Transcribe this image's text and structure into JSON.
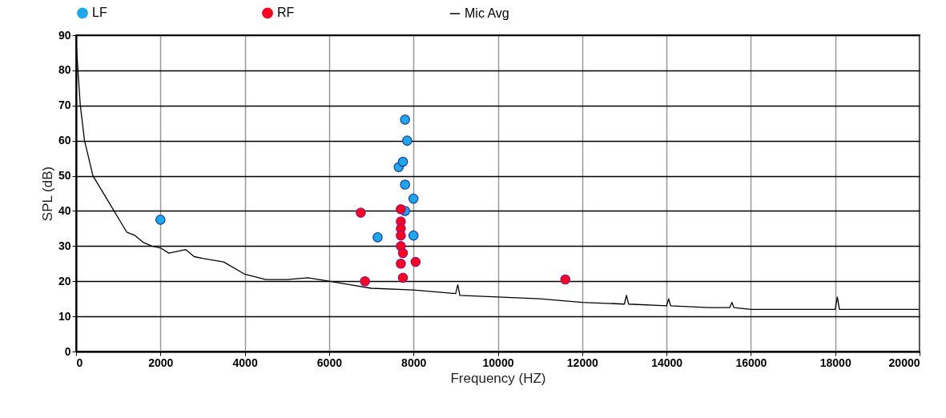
{
  "chart_data": {
    "type": "scatter",
    "xlabel": "Frequency (HZ)",
    "ylabel": "SPL (dB)",
    "xlim": [
      0,
      20000
    ],
    "xticks": [
      0,
      2000,
      4000,
      6000,
      8000,
      10000,
      12000,
      14000,
      16000,
      18000,
      20000
    ],
    "ylim": [
      0,
      90
    ],
    "yticks": [
      0,
      10,
      20,
      30,
      40,
      50,
      60,
      70,
      80,
      90
    ],
    "grid": true,
    "legend": "top",
    "marker": "circle",
    "series": [
      {
        "name": "LF",
        "color": "#1ea7ea",
        "x": [
          2000,
          7150,
          7650,
          7750,
          7800,
          7850,
          7800,
          8000,
          8000,
          7800
        ],
        "values": [
          37.5,
          32.5,
          52.5,
          54,
          66,
          60,
          47.5,
          43.5,
          33,
          40
        ]
      },
      {
        "name": "RF",
        "color": "#ff0022",
        "x": [
          6750,
          6850,
          7700,
          7700,
          7700,
          7700,
          7700,
          7700,
          7750,
          8050,
          11600,
          7750
        ],
        "values": [
          39.5,
          20,
          40.5,
          37,
          35,
          33,
          30,
          25,
          21,
          25.5,
          20.5,
          28
        ]
      },
      {
        "name": "Mic Avg",
        "type": "line",
        "color": "#000000",
        "marker": "none",
        "x": [
          0,
          100,
          200,
          300,
          400,
          600,
          800,
          1000,
          1200,
          1400,
          1600,
          1800,
          2000,
          2200,
          2400,
          2600,
          2800,
          3000,
          3500,
          4000,
          4500,
          5000,
          5500,
          6000,
          6500,
          7000,
          8000,
          8500,
          9000,
          9050,
          9100,
          10000,
          11000,
          12000,
          13000,
          13050,
          13100,
          14000,
          14050,
          14100,
          15000,
          15500,
          15550,
          15600,
          16000,
          17000,
          17500,
          18000,
          18050,
          18100,
          19000,
          20000
        ],
        "values": [
          88,
          70,
          60,
          55,
          50,
          46,
          42,
          38,
          34,
          33,
          31,
          30,
          29.5,
          28,
          28.5,
          29,
          27,
          26.5,
          25.5,
          22,
          20.5,
          20.5,
          21,
          20,
          19,
          18,
          17.5,
          17,
          16.5,
          19,
          16,
          15.5,
          15,
          14,
          13.5,
          16,
          13.5,
          13,
          15,
          13,
          12.5,
          12.5,
          14,
          12.5,
          12,
          12,
          12,
          12,
          15.5,
          12,
          12,
          12
        ]
      }
    ]
  }
}
